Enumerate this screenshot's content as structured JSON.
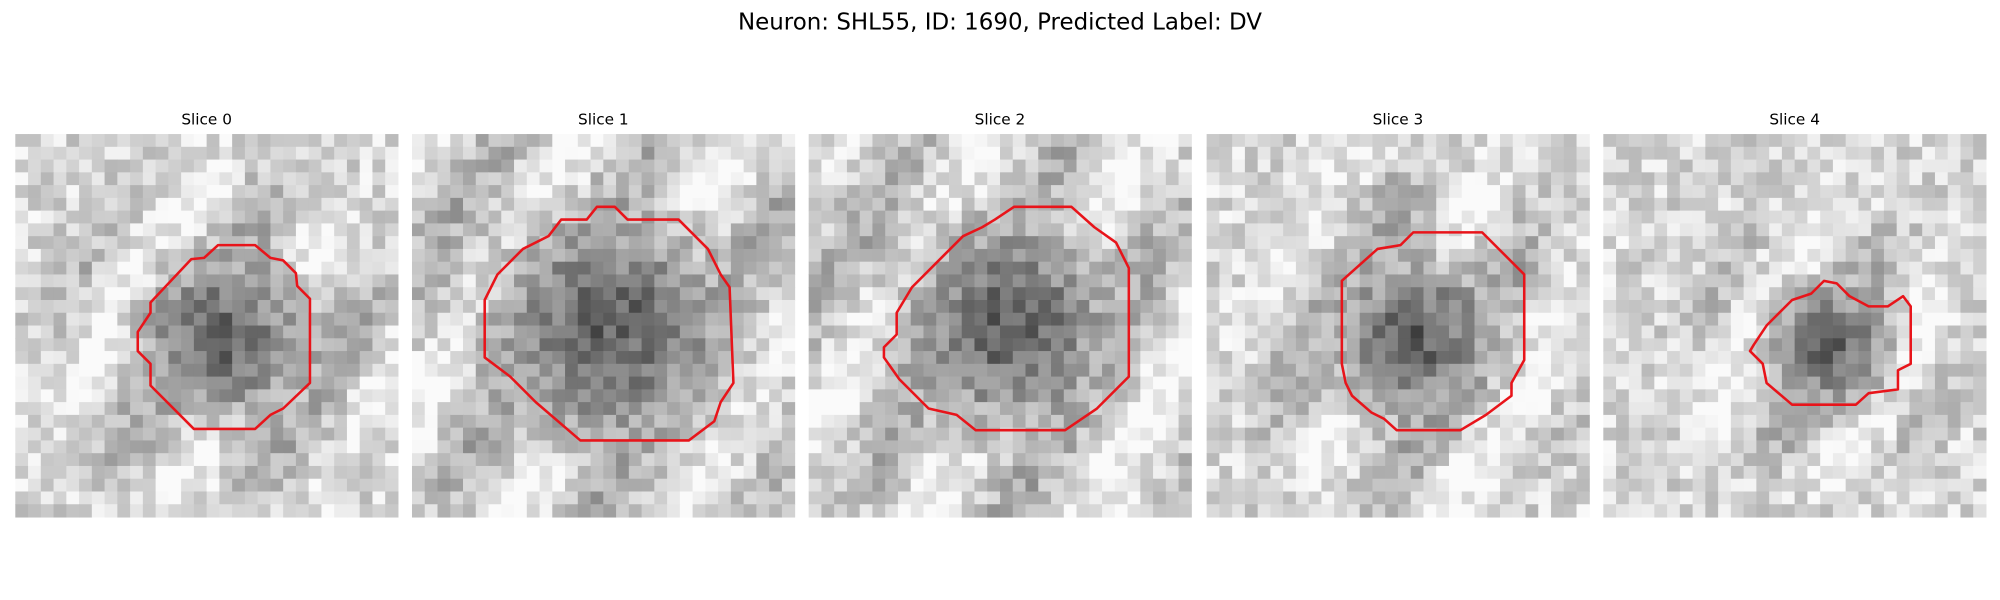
{
  "title": "Neuron: SHL55, ID: 1690, Predicted Label: DV",
  "panels": [
    {
      "title": "Slice 0"
    },
    {
      "title": "Slice 1"
    },
    {
      "title": "Slice 2"
    },
    {
      "title": "Slice 3"
    },
    {
      "title": "Slice 4"
    }
  ]
}
